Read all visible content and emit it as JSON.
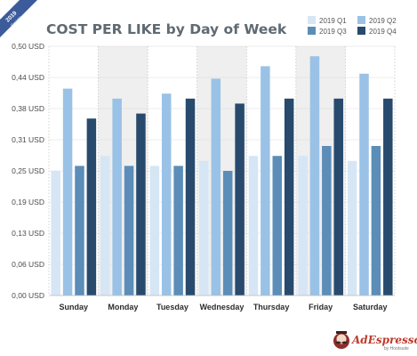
{
  "chart_data": {
    "type": "bar",
    "title": "COST PER LIKE by Day of Week",
    "categories": [
      "Sunday",
      "Monday",
      "Tuesday",
      "Wednesday",
      "Thursday",
      "Friday",
      "Saturday"
    ],
    "series": [
      {
        "name": "2019 Q1",
        "color": "#d6e6f5",
        "values": [
          0.25,
          0.28,
          0.26,
          0.27,
          0.28,
          0.28,
          0.27
        ]
      },
      {
        "name": "2019 Q2",
        "color": "#9ac2e6",
        "values": [
          0.415,
          0.395,
          0.405,
          0.435,
          0.46,
          0.48,
          0.445
        ]
      },
      {
        "name": "2019 Q3",
        "color": "#5b8db8",
        "values": [
          0.26,
          0.26,
          0.26,
          0.25,
          0.28,
          0.3,
          0.3
        ]
      },
      {
        "name": "2019 Q4",
        "color": "#284a6d",
        "values": [
          0.355,
          0.365,
          0.395,
          0.385,
          0.395,
          0.395,
          0.395
        ]
      }
    ],
    "y_ticks": [
      "0,00 USD",
      "0,06 USD",
      "0,13 USD",
      "0,19 USD",
      "0,25 USD",
      "0,31 USD",
      "0,38 USD",
      "0,44 USD",
      "0,50 USD"
    ],
    "ylim": [
      0,
      0.5
    ],
    "shaded_categories": [
      "Monday",
      "Wednesday",
      "Friday"
    ],
    "legend_position": "top-right",
    "grid": true
  },
  "ribbon": {
    "year": "2019",
    "sub": "Review",
    "color": "#3b5b9a"
  },
  "brand": {
    "name": "AdEspresso",
    "sub": "by Hootsuite",
    "logo_icon": "mustache-mascot-icon"
  }
}
